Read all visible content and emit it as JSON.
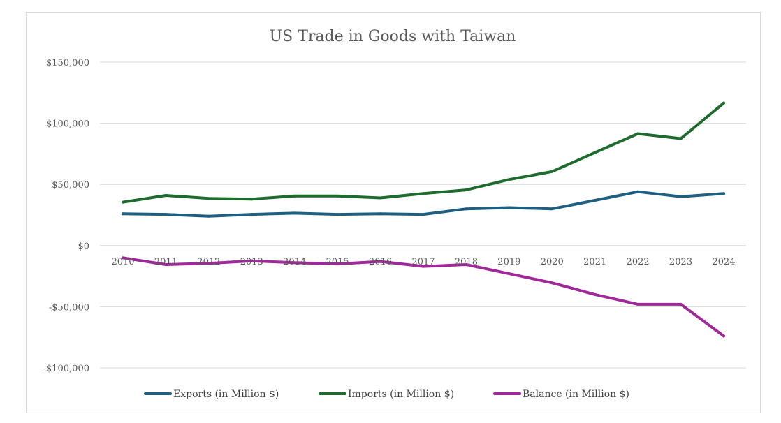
{
  "chart_data": {
    "type": "line",
    "title": "US Trade in Goods with Taiwan",
    "xlabel": "",
    "ylabel": "",
    "categories": [
      "2010",
      "2011",
      "2012",
      "2013",
      "2014",
      "2015",
      "2016",
      "2017",
      "2018",
      "2019",
      "2020",
      "2021",
      "2022",
      "2023",
      "2024"
    ],
    "y_ticks": [
      {
        "value": 150000,
        "label": "$150,000"
      },
      {
        "value": 100000,
        "label": "$100,000"
      },
      {
        "value": 50000,
        "label": "$50,000"
      },
      {
        "value": 0,
        "label": "$0"
      },
      {
        "value": -50000,
        "label": "-$50,000"
      },
      {
        "value": -100000,
        "label": "-$100,000"
      }
    ],
    "ylim": [
      -100000,
      150000
    ],
    "grid": true,
    "legend_position": "bottom",
    "series": [
      {
        "name": "Exports (in Million $)",
        "color": "#1f5f7f",
        "values": [
          26000,
          25500,
          24000,
          25500,
          26500,
          25500,
          26000,
          25500,
          30000,
          31000,
          30000,
          37000,
          44000,
          40000,
          42500
        ]
      },
      {
        "name": "Imports (in Million $)",
        "color": "#1e6b2e",
        "values": [
          35500,
          41000,
          38500,
          38000,
          40500,
          40500,
          39000,
          42500,
          45500,
          54000,
          60500,
          76000,
          91500,
          87500,
          116500
        ]
      },
      {
        "name": "Balance (in Million $)",
        "color": "#a0289a",
        "values": [
          -10000,
          -15500,
          -14500,
          -12500,
          -14000,
          -15000,
          -13000,
          -17000,
          -15500,
          -23000,
          -30500,
          -40000,
          -48000,
          -48000,
          -74000
        ]
      }
    ]
  }
}
